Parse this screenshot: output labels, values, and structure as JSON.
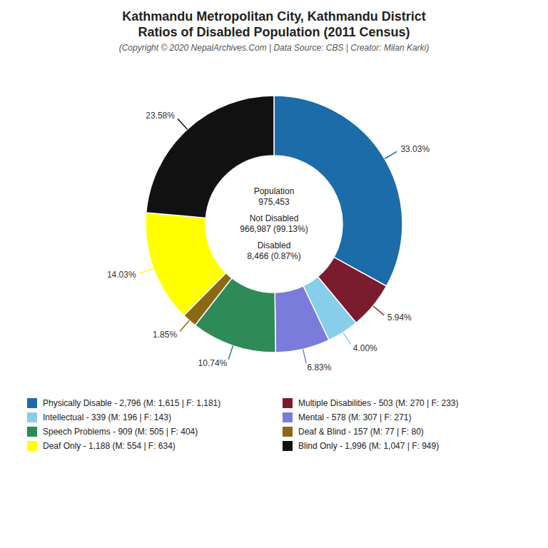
{
  "chart_data": {
    "type": "pie",
    "title": "Kathmandu Metropolitan City, Kathmandu District\nRatios of Disabled Population (2011 Census)",
    "subtitle": "(Copyright © 2020 NepalArchives.Com | Data Source: CBS | Creator: Milan Karki)",
    "categories": [
      "Physically Disable - 2,796 (M: 1,615 | F: 1,181)",
      "Multiple Disabilities - 503 (M: 270 | F: 233)",
      "Intellectual - 339 (M: 196 | F: 143)",
      "Mental - 578 (M: 307 | F: 271)",
      "Speech Problems - 909 (M: 505 | F: 404)",
      "Deaf & Blind - 157 (M: 77 | F: 80)",
      "Deaf Only - 1,188 (M: 554 | F: 634)",
      "Blind Only - 1,996 (M: 1,047 | F: 949)"
    ],
    "values": [
      33.03,
      5.94,
      4.0,
      6.83,
      10.74,
      1.85,
      14.03,
      23.58
    ],
    "value_labels": [
      "33.03%",
      "5.94%",
      "4.00%",
      "6.83%",
      "10.74%",
      "1.85%",
      "14.03%",
      "23.58%"
    ],
    "colors": [
      "#1b6ca8",
      "#7b1c2e",
      "#87ceeb",
      "#7b7bdb",
      "#2e8b57",
      "#8b6914",
      "#ffff00",
      "#111111"
    ],
    "data_labels": true,
    "legend": "bottom",
    "annotations": [
      "Population\n975,453",
      "Not Disabled\n966,987 (99.13%)",
      "Disabled\n8,466 (0.87%)"
    ]
  }
}
